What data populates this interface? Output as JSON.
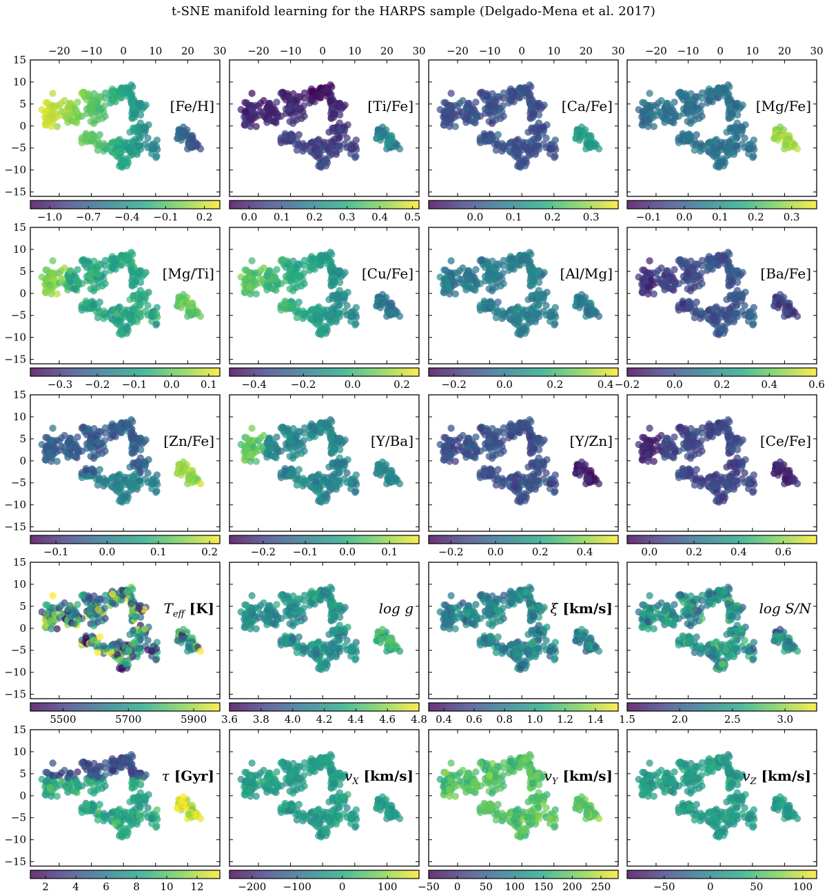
{
  "title": "t-SNE manifold learning for the HARPS sample (Delgado-Mena et al. 2017)",
  "colormap": [
    "#440154",
    "#414487",
    "#2a788e",
    "#22a884",
    "#7ad151",
    "#fde725"
  ],
  "chart_data": {
    "type": "scatter",
    "shared_axes": {
      "x_ticks": [
        -20,
        -10,
        0,
        10,
        20,
        30
      ],
      "x_range": [
        -29,
        30
      ],
      "y_ticks": [
        -15,
        -10,
        -5,
        0,
        5,
        10,
        15
      ],
      "y_range": [
        -16,
        15
      ],
      "x_axis_position": "top (first row)",
      "y_axis_position": "left (first column)"
    },
    "panels": [
      {
        "label": "[Fe/H]",
        "colorbar": {
          "ticks": [
            "−1.0",
            "−0.7",
            "−0.4",
            "−0.1",
            "0.2"
          ],
          "tick_values": [
            -1.0,
            -0.7,
            -0.4,
            -0.1,
            0.2
          ],
          "range": [
            -1.15,
            0.32
          ]
        }
      },
      {
        "label": "[Ti/Fe]",
        "colorbar": {
          "ticks": [
            "0.0",
            "0.1",
            "0.2",
            "0.3",
            "0.4",
            "0.5"
          ],
          "tick_values": [
            0.0,
            0.1,
            0.2,
            0.3,
            0.4,
            0.5
          ],
          "range": [
            -0.06,
            0.52
          ]
        }
      },
      {
        "label": "[Ca/Fe]",
        "colorbar": {
          "ticks": [
            "0.0",
            "0.1",
            "0.2",
            "0.3"
          ],
          "tick_values": [
            0.0,
            0.1,
            0.2,
            0.3
          ],
          "range": [
            -0.12,
            0.37
          ]
        }
      },
      {
        "label": "[Mg/Fe]",
        "colorbar": {
          "ticks": [
            "−0.1",
            "0.0",
            "0.1",
            "0.2",
            "0.3"
          ],
          "tick_values": [
            -0.1,
            0.0,
            0.1,
            0.2,
            0.3
          ],
          "range": [
            -0.16,
            0.37
          ]
        }
      },
      {
        "label": "[Mg/Ti]",
        "colorbar": {
          "ticks": [
            "−0.3",
            "−0.2",
            "−0.1",
            "0.0",
            "0.1"
          ],
          "tick_values": [
            -0.3,
            -0.2,
            -0.1,
            0.0,
            0.1
          ],
          "range": [
            -0.38,
            0.13
          ]
        }
      },
      {
        "label": "[Cu/Fe]",
        "colorbar": {
          "ticks": [
            "−0.4",
            "−0.2",
            "0.0",
            "0.2"
          ],
          "tick_values": [
            -0.4,
            -0.2,
            0.0,
            0.2
          ],
          "range": [
            -0.5,
            0.27
          ]
        }
      },
      {
        "label": "[Al/Mg]",
        "colorbar": {
          "ticks": [
            "−0.2",
            "0.0",
            "0.2",
            "0.4"
          ],
          "tick_values": [
            -0.2,
            0.0,
            0.2,
            0.4
          ],
          "range": [
            -0.3,
            0.45
          ]
        }
      },
      {
        "label": "[Ba/Fe]",
        "colorbar": {
          "ticks": [
            "−0.2",
            "0.0",
            "0.2",
            "0.4",
            "0.6"
          ],
          "tick_values": [
            -0.2,
            0.0,
            0.2,
            0.4,
            0.6
          ],
          "range": [
            -0.2,
            0.6
          ]
        }
      },
      {
        "label": "[Zn/Fe]",
        "colorbar": {
          "ticks": [
            "−0.1",
            "0.0",
            "0.1",
            "0.2"
          ],
          "tick_values": [
            -0.1,
            0.0,
            0.1,
            0.2
          ],
          "range": [
            -0.15,
            0.22
          ]
        }
      },
      {
        "label": "[Y/Ba]",
        "colorbar": {
          "ticks": [
            "−0.2",
            "−0.1",
            "0.0",
            "0.1"
          ],
          "tick_values": [
            -0.2,
            -0.1,
            0.0,
            0.1
          ],
          "range": [
            -0.28,
            0.17
          ]
        }
      },
      {
        "label": "[Y/Zn]",
        "colorbar": {
          "ticks": [
            "−0.2",
            "0.0",
            "0.2",
            "0.4"
          ],
          "tick_values": [
            -0.2,
            0.0,
            0.2,
            0.4
          ],
          "range": [
            -0.3,
            0.55
          ]
        }
      },
      {
        "label": "[Ce/Fe]",
        "colorbar": {
          "ticks": [
            "0.0",
            "0.2",
            "0.4",
            "0.6"
          ],
          "tick_values": [
            0.0,
            0.2,
            0.4,
            0.6
          ],
          "range": [
            -0.1,
            0.75
          ]
        }
      },
      {
        "label": "T_eff [K]",
        "label_main": "T",
        "label_sub": "eff",
        "label_tail": " [K]",
        "colorbar": {
          "ticks": [
            "5500",
            "5700",
            "5900"
          ],
          "tick_values": [
            5500,
            5700,
            5900
          ],
          "range": [
            5400,
            5980
          ]
        }
      },
      {
        "label": "log g",
        "label_main": "log g",
        "colorbar": {
          "ticks": [
            "3.6",
            "3.8",
            "4.0",
            "4.2",
            "4.4",
            "4.6",
            "4.8"
          ],
          "tick_values": [
            3.6,
            3.8,
            4.0,
            4.2,
            4.4,
            4.6,
            4.8
          ],
          "range": [
            3.6,
            4.8
          ]
        }
      },
      {
        "label": "ξ [km/s]",
        "label_main": "ξ",
        "label_tail": " [km/s]",
        "colorbar": {
          "ticks": [
            "0.4",
            "0.6",
            "0.8",
            "1.0",
            "1.2",
            "1.4"
          ],
          "tick_values": [
            0.4,
            0.6,
            0.8,
            1.0,
            1.2,
            1.4
          ],
          "range": [
            0.3,
            1.55
          ]
        }
      },
      {
        "label": "log S/N",
        "label_main": "log S/N",
        "colorbar": {
          "ticks": [
            "1.5",
            "2.0",
            "2.5",
            "3.0"
          ],
          "tick_values": [
            1.5,
            2.0,
            2.5,
            3.0
          ],
          "range": [
            1.5,
            3.3
          ]
        }
      },
      {
        "label": "τ [Gyr]",
        "label_main": "τ",
        "label_tail": " [Gyr]",
        "colorbar": {
          "ticks": [
            "2",
            "4",
            "6",
            "8",
            "10",
            "12"
          ],
          "tick_values": [
            2,
            4,
            6,
            8,
            10,
            12
          ],
          "range": [
            1,
            13.5
          ]
        }
      },
      {
        "label": "v_X [km/s]",
        "label_main": "v",
        "label_sub": "X",
        "label_tail": " [km/s]",
        "colorbar": {
          "ticks": [
            "−200",
            "−100",
            "0",
            "100"
          ],
          "tick_values": [
            -200,
            -100,
            0,
            100
          ],
          "range": [
            -250,
            170
          ]
        }
      },
      {
        "label": "v_Y [km/s]",
        "label_main": "v",
        "label_sub": "Y",
        "label_tail": " [km/s]",
        "colorbar": {
          "ticks": [
            "−50",
            "0",
            "50",
            "100",
            "150",
            "200",
            "250"
          ],
          "tick_values": [
            -50,
            0,
            50,
            100,
            150,
            200,
            250
          ],
          "range": [
            -50,
            280
          ]
        }
      },
      {
        "label": "v_Z [km/s]",
        "label_main": "v",
        "label_sub": "Z",
        "label_tail": " [km/s]",
        "colorbar": {
          "ticks": [
            "−50",
            "0",
            "50",
            "100"
          ],
          "tick_values": [
            -50,
            0,
            50,
            100
          ],
          "range": [
            -90,
            115
          ]
        }
      }
    ]
  }
}
